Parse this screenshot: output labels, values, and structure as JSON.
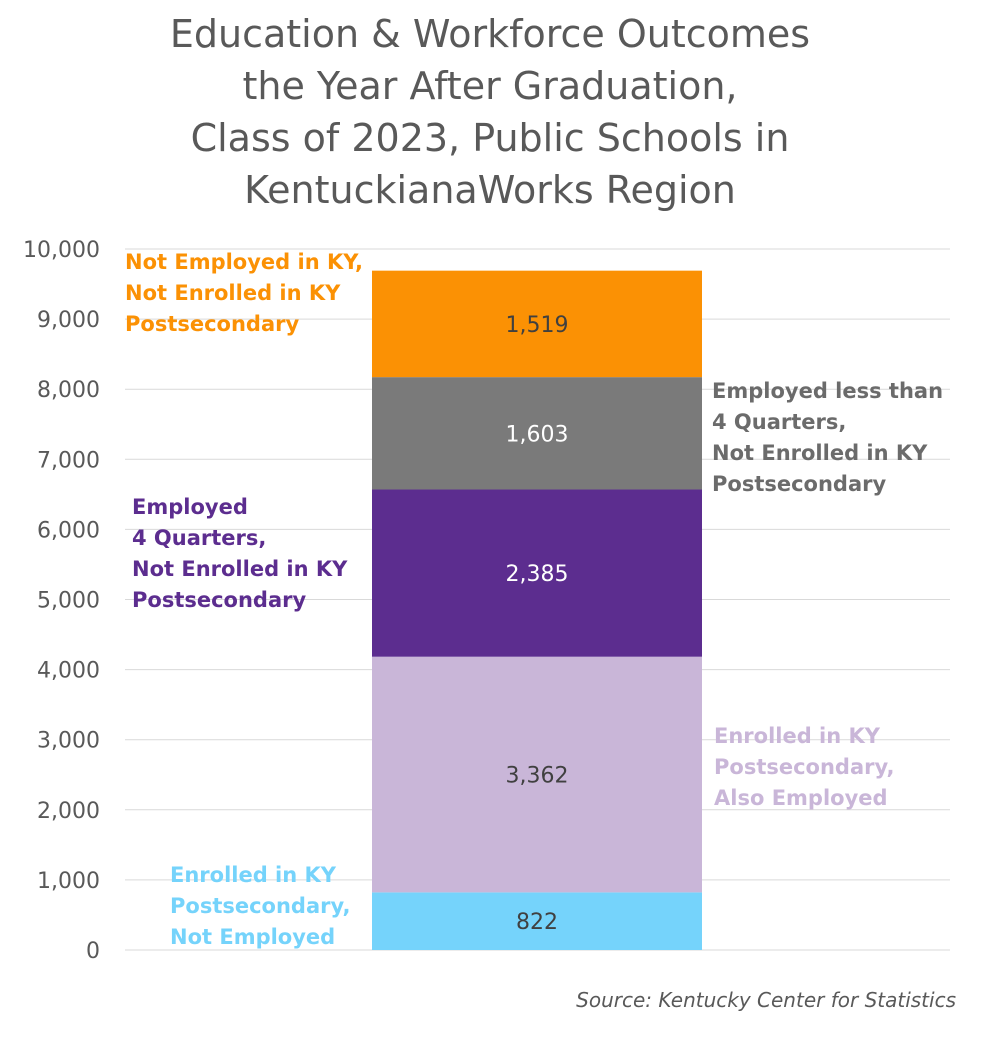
{
  "chart_data": {
    "type": "bar",
    "stacked": true,
    "title": "Education & Workforce Outcomes\nthe Year After Graduation,\nClass of 2023, Public Schools in\nKentuckianaWorks Region",
    "source": "Source: Kentucky Center for Statistics",
    "ylim": [
      0,
      10000
    ],
    "yticks": [
      {
        "value": 0,
        "label": "0"
      },
      {
        "value": 1000,
        "label": "1,000"
      },
      {
        "value": 2000,
        "label": "2,000"
      },
      {
        "value": 3000,
        "label": "3,000"
      },
      {
        "value": 4000,
        "label": "4,000"
      },
      {
        "value": 5000,
        "label": "5,000"
      },
      {
        "value": 6000,
        "label": "6,000"
      },
      {
        "value": 7000,
        "label": "7,000"
      },
      {
        "value": 8000,
        "label": "8,000"
      },
      {
        "value": 9000,
        "label": "9,000"
      },
      {
        "value": 10000,
        "label": "10,000"
      }
    ],
    "grid": true,
    "series": [
      {
        "name": "Enrolled in KY Postsecondary, Not Employed",
        "lines": [
          "Enrolled in KY",
          "Postsecondary,",
          "Not Employed"
        ],
        "value": 822,
        "label": "822",
        "color": "#75d3fb",
        "label_color": "#404040",
        "legend_color": "#75d3fb",
        "legend_side": "left"
      },
      {
        "name": "Enrolled in KY Postsecondary, Also Employed",
        "lines": [
          "Enrolled in KY",
          "Postsecondary,",
          "Also Employed"
        ],
        "value": 3362,
        "label": "3,362",
        "color": "#c9b6d8",
        "label_color": "#404040",
        "legend_color": "#c9b6d8",
        "legend_side": "right"
      },
      {
        "name": "Employed 4 Quarters, Not Enrolled in KY Postsecondary",
        "lines": [
          "Employed",
          "4 Quarters,",
          "Not Enrolled in KY",
          "Postsecondary"
        ],
        "value": 2385,
        "label": "2,385",
        "color": "#5c2d8f",
        "label_color": "#ffffff",
        "legend_color": "#5c2d8f",
        "legend_side": "left"
      },
      {
        "name": "Employed less than 4 Quarters, Not Enrolled in KY Postsecondary",
        "lines": [
          "Employed less than",
          "4 Quarters,",
          "Not Enrolled in KY",
          "Postsecondary"
        ],
        "value": 1603,
        "label": "1,603",
        "color": "#7a7a7a",
        "label_color": "#ffffff",
        "legend_color": "#6b6b6b",
        "legend_side": "right"
      },
      {
        "name": "Not Employed in KY, Not Enrolled in KY Postsecondary",
        "lines": [
          "Not Employed in KY,",
          "Not Enrolled in KY",
          "Postsecondary"
        ],
        "value": 1519,
        "label": "1,519",
        "color": "#fb9104",
        "label_color": "#404040",
        "legend_color": "#fb9104",
        "legend_side": "left"
      }
    ]
  }
}
